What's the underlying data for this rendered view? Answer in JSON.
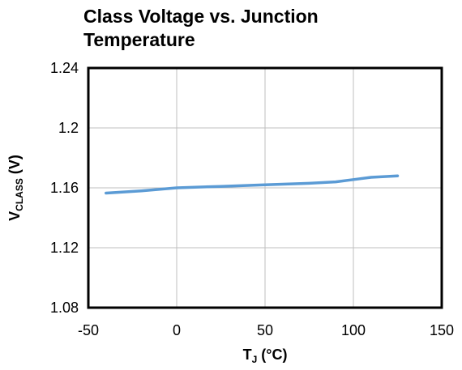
{
  "chart_data": {
    "type": "line",
    "title_lines": [
      "Class Voltage vs. Junction",
      "Temperature"
    ],
    "xlabel": {
      "main": "T",
      "sub": "J",
      "rest": " (°C)"
    },
    "ylabel": {
      "main": "V",
      "sub": "CLASS",
      "rest": " (V)"
    },
    "xlim": [
      -50,
      150
    ],
    "ylim": [
      1.08,
      1.24
    ],
    "x_ticks": [
      -50,
      0,
      50,
      100,
      150
    ],
    "x_tick_labels": [
      "-50",
      "0",
      "50",
      "100",
      "150"
    ],
    "y_ticks": [
      1.08,
      1.12,
      1.16,
      1.2,
      1.24
    ],
    "y_tick_labels": [
      "1.08",
      "1.12",
      "1.16",
      "1.2",
      "1.24"
    ],
    "grid": true,
    "series": [
      {
        "color": "#5b9bd5",
        "x": [
          -40,
          -20,
          0,
          25,
          50,
          75,
          90,
          100,
          110,
          125
        ],
        "y": [
          1.1565,
          1.158,
          1.16,
          1.161,
          1.162,
          1.163,
          1.164,
          1.1655,
          1.167,
          1.168
        ]
      }
    ]
  }
}
